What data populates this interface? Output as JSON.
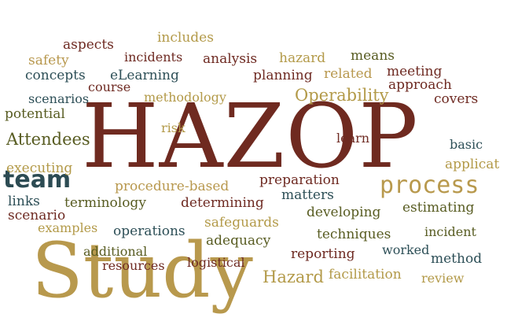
{
  "words": {
    "hazop": "HAZOP",
    "study": "Study",
    "team": "team",
    "process": "process",
    "aspects": "aspects",
    "includes": "includes",
    "safety": "safety",
    "incidents": "incidents",
    "analysis": "analysis",
    "hazard": "hazard",
    "means": "means",
    "concepts": "concepts",
    "elearning": "eLearning",
    "meeting": "meeting",
    "planning": "planning",
    "related": "related",
    "course": "course",
    "approach": "approach",
    "scenarios": "scenarios",
    "methodology": "methodology",
    "operability": "Operability",
    "covers": "covers",
    "potential": "potential",
    "risk": "risk",
    "attendees": "Attendees",
    "learn": "learn",
    "basic": "basic",
    "executing": "executing",
    "applicat": "applicat",
    "preparation": "preparation",
    "procedure_based": "procedure-based",
    "matters": "matters",
    "links": "links",
    "terminology": "terminology",
    "determining": "determining",
    "estimating": "estimating",
    "scenario": "scenario",
    "developing": "developing",
    "examples": "examples",
    "operations": "operations",
    "safeguards": "safeguards",
    "incident": "incident",
    "techniques": "techniques",
    "adequacy": "adequacy",
    "additional": "additional",
    "worked": "worked",
    "reporting": "reporting",
    "method": "method",
    "resources": "resources",
    "logistical": "logistical",
    "hazard_cap": "Hazard",
    "facilitation": "facilitation",
    "review": "review"
  }
}
